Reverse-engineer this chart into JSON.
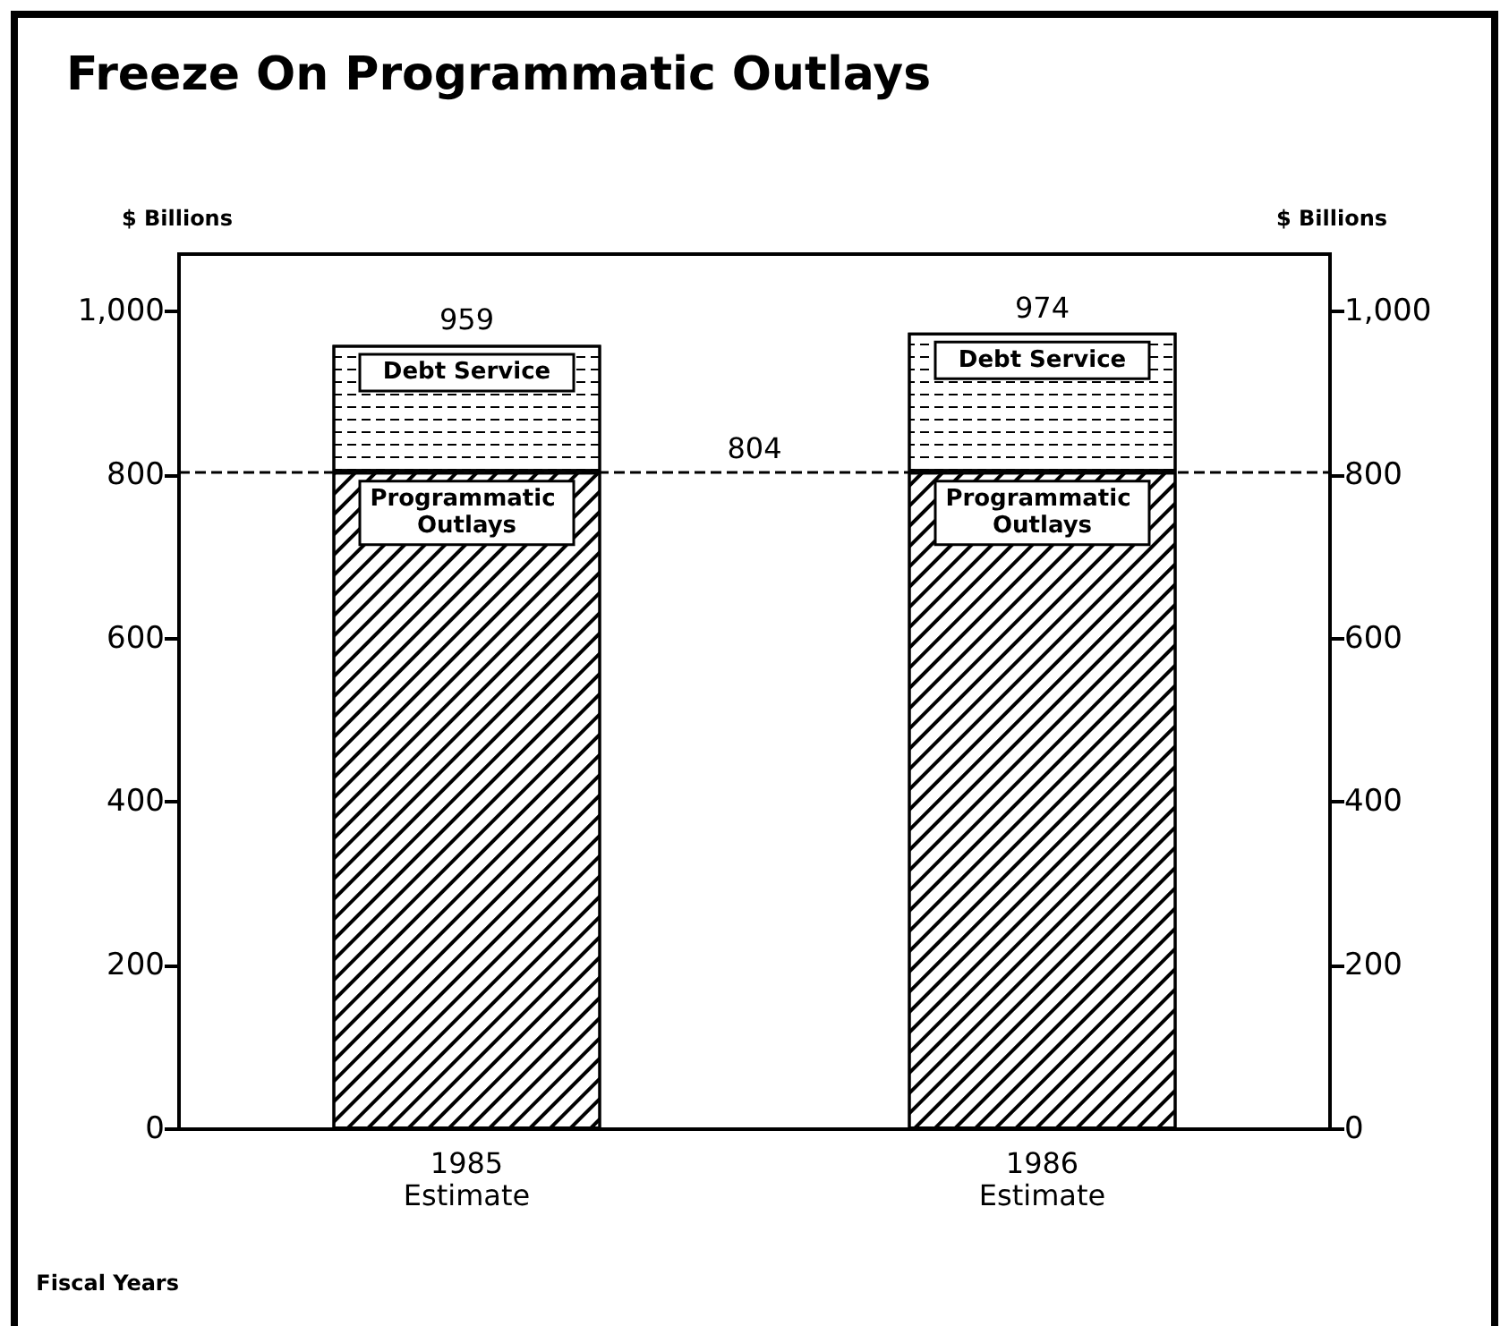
{
  "chart_data": {
    "type": "bar",
    "title": "Freeze On Programmatic Outlays",
    "ylabel": "$ Billions",
    "y2label": "$ Billions",
    "xlabel": "Fiscal Years",
    "categories": [
      "1985\nEstimate",
      "1986\nEstimate"
    ],
    "stacked": true,
    "series": [
      {
        "name": "Programmatic Outlays",
        "color": "#ffffff",
        "values": [
          804,
          804
        ]
      },
      {
        "name": "Debt Service",
        "color": "#ffffff",
        "values": [
          155,
          170
        ]
      }
    ],
    "totals": [
      "959",
      "974"
    ],
    "ref_lines": [
      {
        "axis": "y",
        "value": 804,
        "label": "804",
        "color": "#000000",
        "line_style": "dashed"
      }
    ],
    "ylim": [
      0,
      1070
    ],
    "yticks": [
      {
        "value": 0,
        "label": "0"
      },
      {
        "value": 200,
        "label": "200"
      },
      {
        "value": 400,
        "label": "400"
      },
      {
        "value": 600,
        "label": "600"
      },
      {
        "value": 800,
        "label": "800"
      },
      {
        "value": 1000,
        "label": "1,000"
      }
    ],
    "y2lim": [
      0,
      1070
    ],
    "y2ticks": [
      {
        "value": 0,
        "label": "0"
      },
      {
        "value": 200,
        "label": "200"
      },
      {
        "value": 400,
        "label": "400"
      },
      {
        "value": 600,
        "label": "600"
      },
      {
        "value": 800,
        "label": "800"
      },
      {
        "value": 1000,
        "label": "1,000"
      }
    ],
    "grid": false,
    "legend": false
  }
}
